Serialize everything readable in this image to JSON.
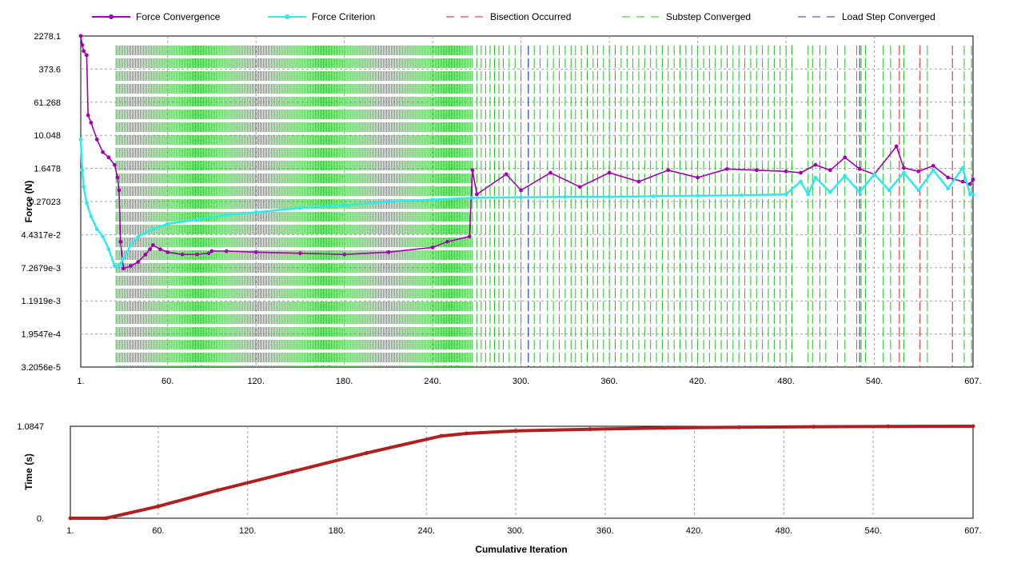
{
  "legend": [
    {
      "label": "Force Convergence",
      "color": "#a000b0",
      "style": "line-marker"
    },
    {
      "label": "Force Criterion",
      "color": "#30e8ee",
      "style": "line-marker"
    },
    {
      "label": "Bisection Occurred",
      "color": "#d02020",
      "style": "dashed"
    },
    {
      "label": "Substep Converged",
      "color": "#20c020",
      "style": "dashed"
    },
    {
      "label": "Load Step Converged",
      "color": "#2030a0",
      "style": "dashed"
    }
  ],
  "chart_data": [
    {
      "type": "line",
      "xlabel": "",
      "ylabel": "Force (N)",
      "yscale": "log",
      "xlim": [
        1,
        607
      ],
      "ytick_labels": [
        "2278.1",
        "373.6",
        "61.268",
        "10.048",
        "1.6478",
        "0.27023",
        "4.4317e-2",
        "7.2679e-3",
        "1.1919e-3",
        "1.9547e-4",
        "3.2056e-5"
      ],
      "ytick_values": [
        2278.1,
        373.6,
        61.268,
        10.048,
        1.6478,
        0.27023,
        0.044317,
        0.0072679,
        0.0011919,
        0.00019547,
        3.2056e-05
      ],
      "xtick_labels": [
        "1.",
        "60.",
        "120.",
        "180.",
        "240.",
        "300.",
        "360.",
        "420.",
        "480.",
        "540.",
        "607."
      ],
      "xtick_values": [
        1,
        60,
        120,
        180,
        240,
        300,
        360,
        420,
        480,
        540,
        607
      ],
      "grid": true,
      "series": [
        {
          "name": "Force Convergence",
          "x": [
            1,
            2,
            3,
            5,
            6,
            8,
            12,
            16,
            20,
            24,
            26,
            27,
            28,
            30,
            35,
            40,
            45,
            48,
            50,
            55,
            60,
            70,
            80,
            88,
            90,
            100,
            120,
            150,
            180,
            210,
            240,
            250,
            265,
            267,
            270,
            290,
            300,
            320,
            340,
            360,
            380,
            400,
            420,
            440,
            460,
            480,
            490,
            500,
            510,
            520,
            530,
            540,
            555,
            560,
            570,
            580,
            590,
            600,
            605,
            607
          ],
          "y": [
            2278.1,
            1400,
            1000,
            800,
            30,
            20,
            8,
            4,
            3,
            2,
            1.0,
            0.5,
            0.03,
            0.007,
            0.008,
            0.01,
            0.015,
            0.02,
            0.025,
            0.02,
            0.017,
            0.015,
            0.015,
            0.016,
            0.018,
            0.018,
            0.017,
            0.016,
            0.015,
            0.017,
            0.022,
            0.03,
            0.04,
            1.5,
            0.4,
            1.2,
            0.5,
            1.3,
            0.6,
            1.3,
            0.8,
            1.5,
            1.0,
            1.6,
            1.5,
            1.4,
            1.3,
            2.0,
            1.5,
            3.0,
            1.6,
            1.2,
            5.5,
            1.7,
            1.4,
            1.9,
            1.0,
            0.8,
            0.7,
            0.9
          ]
        },
        {
          "name": "Force Criterion",
          "x": [
            1,
            2,
            3,
            5,
            8,
            12,
            16,
            20,
            24,
            26,
            28,
            30,
            35,
            40,
            50,
            60,
            80,
            100,
            120,
            150,
            180,
            210,
            240,
            267,
            300,
            330,
            360,
            390,
            420,
            450,
            480,
            490,
            495,
            500,
            510,
            520,
            530,
            540,
            550,
            560,
            570,
            580,
            590,
            600,
            605,
            607
          ],
          "y": [
            8.0,
            1.5,
            0.6,
            0.25,
            0.12,
            0.06,
            0.04,
            0.02,
            0.008,
            0.0075,
            0.009,
            0.012,
            0.025,
            0.04,
            0.06,
            0.08,
            0.1,
            0.13,
            0.15,
            0.19,
            0.22,
            0.27,
            0.3,
            0.33,
            0.34,
            0.35,
            0.35,
            0.36,
            0.37,
            0.38,
            0.4,
            0.8,
            0.4,
            1.0,
            0.45,
            1.1,
            0.45,
            1.2,
            0.5,
            1.3,
            0.5,
            1.5,
            0.55,
            1.7,
            0.4,
            0.4
          ]
        }
      ],
      "bisection_x": [
        557,
        571,
        593
      ],
      "substep_dense_range": [
        25,
        267
      ],
      "substep_sparse_x": [
        270,
        273,
        276,
        279,
        282,
        285,
        288,
        292,
        296,
        300,
        305,
        309,
        313,
        318,
        322,
        326,
        330,
        334,
        337,
        341,
        345,
        349,
        352,
        356,
        360,
        364,
        368,
        372,
        376,
        380,
        384,
        388,
        392,
        396,
        400,
        404,
        408,
        412,
        416,
        420,
        424,
        428,
        432,
        436,
        440,
        444,
        448,
        452,
        456,
        460,
        464,
        468,
        472,
        476,
        480,
        484,
        495,
        498,
        503,
        507,
        515,
        520,
        528,
        531,
        534,
        546,
        551,
        560,
        576,
        601,
        606
      ],
      "loadstep_x": [
        305,
        530
      ]
    },
    {
      "type": "line",
      "xlabel": "Cumulative Iteration",
      "ylabel": "Time (s)",
      "xlim": [
        1,
        607
      ],
      "ylim": [
        0,
        1.0847
      ],
      "ytick_labels": [
        "1.0847",
        "0."
      ],
      "ytick_values": [
        1.0847,
        0
      ],
      "xtick_labels": [
        "1.",
        "60.",
        "120.",
        "180.",
        "240.",
        "300.",
        "360.",
        "420.",
        "480.",
        "540.",
        "607."
      ],
      "xtick_values": [
        1,
        60,
        120,
        180,
        240,
        300,
        360,
        420,
        480,
        540,
        607
      ],
      "grid": true,
      "series": [
        {
          "color": "#b02020",
          "x": [
            1,
            25,
            60,
            100,
            150,
            200,
            250,
            267,
            300,
            350,
            400,
            450,
            500,
            550,
            607
          ],
          "y": [
            0,
            0,
            0.14,
            0.33,
            0.55,
            0.77,
            0.97,
            1.0,
            1.03,
            1.05,
            1.065,
            1.073,
            1.079,
            1.083,
            1.0847
          ]
        }
      ]
    }
  ]
}
